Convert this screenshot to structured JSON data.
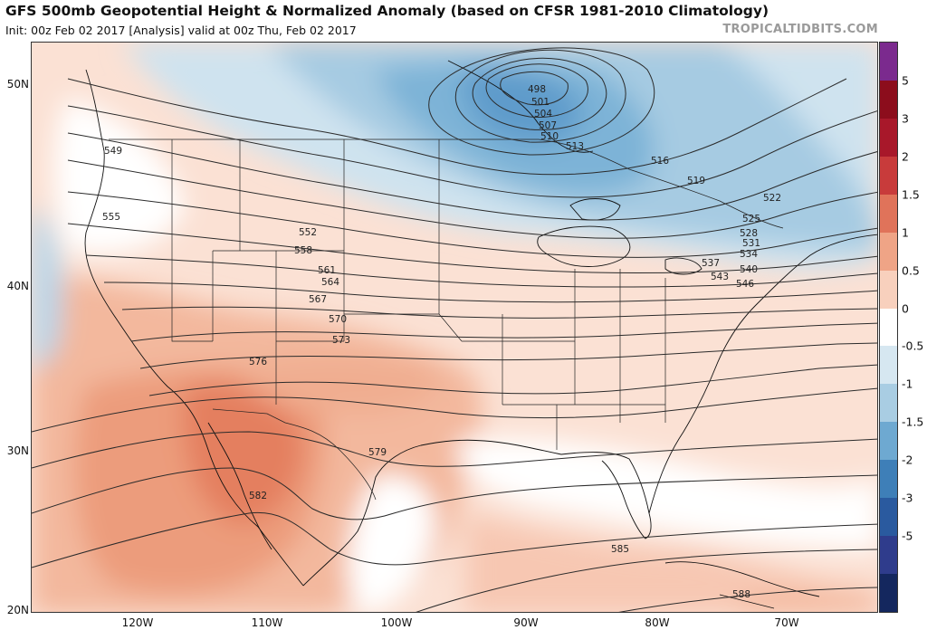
{
  "header": {
    "title": "GFS 500mb Geopotential Height & Normalized Anomaly (based on CFSR 1981-2010 Climatology)",
    "subtitle": "Init: 00z Feb 02 2017   [Analysis]   valid at 00z Thu, Feb 02 2017",
    "credit": "TROPICALTIDBITS.COM"
  },
  "map": {
    "lat_labels": [
      "50N",
      "40N",
      "30N",
      "20N"
    ],
    "lon_labels": [
      "120W",
      "110W",
      "100W",
      "90W",
      "80W",
      "70W"
    ],
    "contour_labels": [
      "498",
      "501",
      "504",
      "507",
      "510",
      "513",
      "516",
      "519",
      "522",
      "525",
      "528",
      "531",
      "534",
      "537",
      "540",
      "543",
      "546",
      "549",
      "552",
      "555",
      "558",
      "561",
      "564",
      "567",
      "570",
      "573",
      "576",
      "579",
      "582",
      "585",
      "588"
    ]
  },
  "colorbar": {
    "ticks": [
      "5",
      "3",
      "2",
      "1.5",
      "1",
      "0.5",
      "0",
      "-0.5",
      "-1",
      "-1.5",
      "-2",
      "-3",
      "-5"
    ],
    "colors": [
      "#7b2a8e",
      "#8c0d1c",
      "#a8182a",
      "#c83b3b",
      "#e0735a",
      "#efa486",
      "#f8d0bd",
      "#ffffff",
      "#d6e7f1",
      "#a9cde3",
      "#6ea9d1",
      "#3e7fb8",
      "#2a5a9f",
      "#2f3c8c",
      "#14275e"
    ]
  }
}
